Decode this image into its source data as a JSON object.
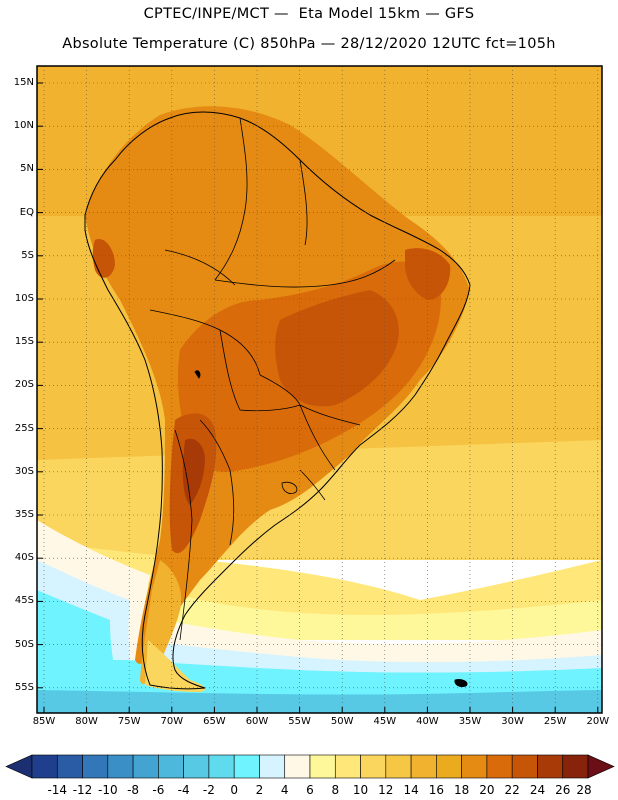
{
  "title": {
    "line1": "CPTEC/INPE/MCT —  Eta Model 15km — GFS",
    "line2": "Absolute Temperature (C) 850hPa — 28/12/2020 12UTC fct=105h"
  },
  "lat_labels": [
    "15N",
    "10N",
    "5N",
    "EQ",
    "5S",
    "10S",
    "15S",
    "20S",
    "25S",
    "30S",
    "35S",
    "40S",
    "45S",
    "50S",
    "55S"
  ],
  "lon_labels": [
    "85W",
    "80W",
    "75W",
    "70W",
    "65W",
    "60W",
    "55W",
    "50W",
    "45W",
    "40W",
    "35W",
    "30W",
    "25W",
    "20W"
  ],
  "colorbar": {
    "labels": [
      "-14",
      "-12",
      "-10",
      "-8",
      "-6",
      "-4",
      "-2",
      "0",
      "2",
      "4",
      "6",
      "8",
      "10",
      "12",
      "14",
      "16",
      "18",
      "20",
      "22",
      "24",
      "26",
      "28"
    ],
    "colors": [
      "#1f3f8c",
      "#2a5ca6",
      "#3377b8",
      "#3a8fc6",
      "#43a4d2",
      "#4db8dc",
      "#57c9e4",
      "#5fdbed",
      "#6ff4ff",
      "#d6f4ff",
      "#fff8e6",
      "#fff89a",
      "#ffe77a",
      "#fbd65e",
      "#f6c645",
      "#f0b22f",
      "#ebab1f",
      "#e58a12",
      "#d96b0b",
      "#c75508",
      "#a83a08",
      "#86230a"
    ],
    "left_color": "#1c2f70",
    "right_color": "#6b0f16"
  }
}
